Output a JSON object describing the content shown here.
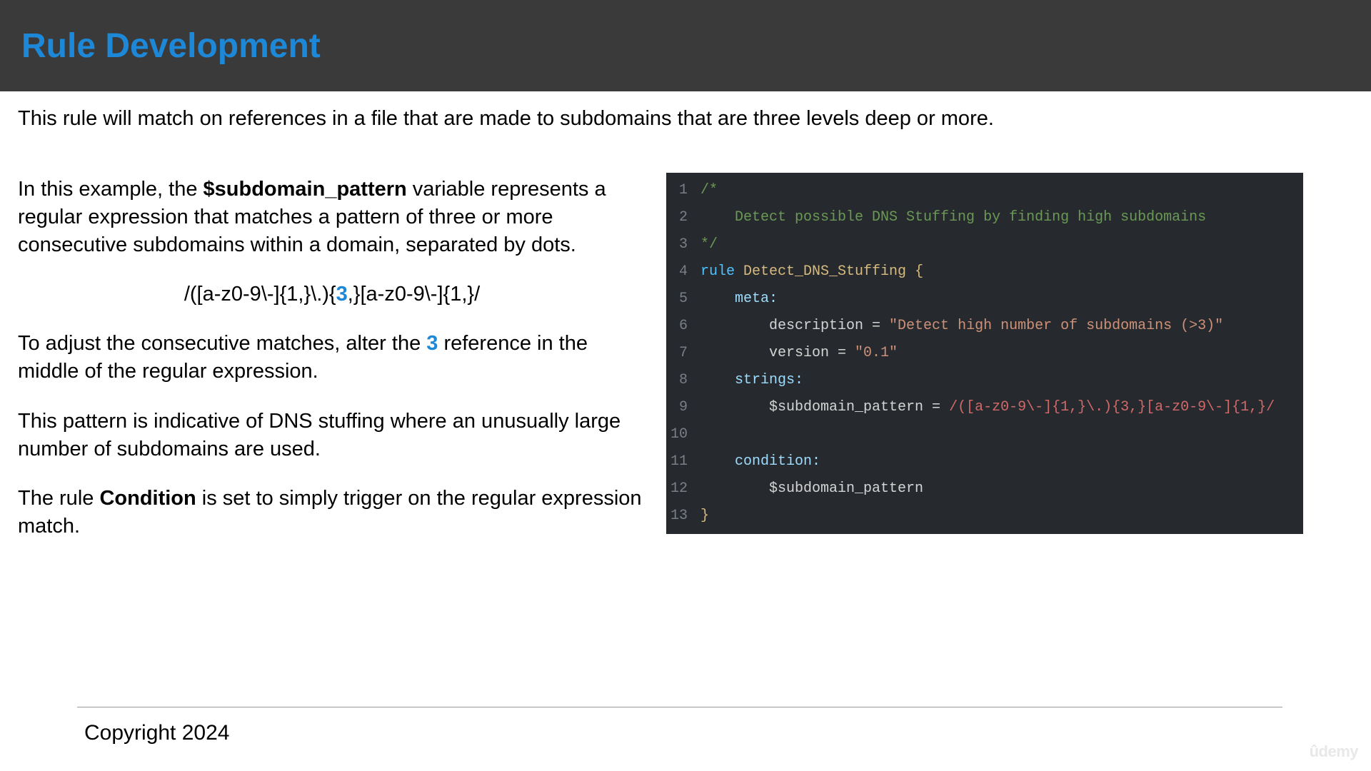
{
  "header": {
    "title": "Rule Development"
  },
  "intro": "This rule will match on references in a file that are made to subdomains that are three levels deep or more.",
  "left": {
    "p1_a": "In this example, the ",
    "p1_bold": "$subdomain_pattern",
    "p1_b": " variable represents a regular expression that matches a pattern of three or more consecutive subdomains within a domain, separated by dots.",
    "regex_a": "/([a-z0-9\\-]{1,}\\.){",
    "regex_hl": "3",
    "regex_b": ",}[a-z0-9\\-]{1,}/",
    "p2_a": "To adjust the consecutive matches, alter the ",
    "p2_hl": "3",
    "p2_b": " reference in the middle of the regular expression.",
    "p3": "This pattern is indicative of DNS stuffing where an unusually large number of subdomains are used.",
    "p4_a": "The rule ",
    "p4_bold": "Condition",
    "p4_b": " is set to simply trigger on the regular expression match."
  },
  "code": {
    "background": "#262a2e",
    "linenum_color": "#7a7f85",
    "colors": {
      "comment": "#6a9955",
      "keyword": "#4fc1ff",
      "name": "#d7ba7d",
      "section": "#9cdcfe",
      "string": "#ce9178",
      "regex": "#d16969",
      "brace": "#d7ba7d",
      "default": "#d4d4d4"
    },
    "lines": {
      "l1": "/*",
      "l2": "    Detect possible DNS Stuffing by finding high subdomains",
      "l3": "*/",
      "l4_kw": "rule",
      "l4_name": " Detect_DNS_Stuffing ",
      "l4_brace": "{",
      "l5": "    meta:",
      "l6_a": "        description = ",
      "l6_s": "\"Detect high number of subdomains (>3)\"",
      "l7_a": "        version = ",
      "l7_s": "\"0.1\"",
      "l8": "    strings:",
      "l9_a": "        $subdomain_pattern = ",
      "l9_r": "/([a-z0-9\\-]{1,}\\.){3,}[a-z0-9\\-]{1,}/",
      "l10": "",
      "l11": "    condition:",
      "l12": "        $subdomain_pattern",
      "l13": "}"
    }
  },
  "footer": {
    "copyright": "Copyright 2024",
    "watermark": "ûdemy"
  }
}
